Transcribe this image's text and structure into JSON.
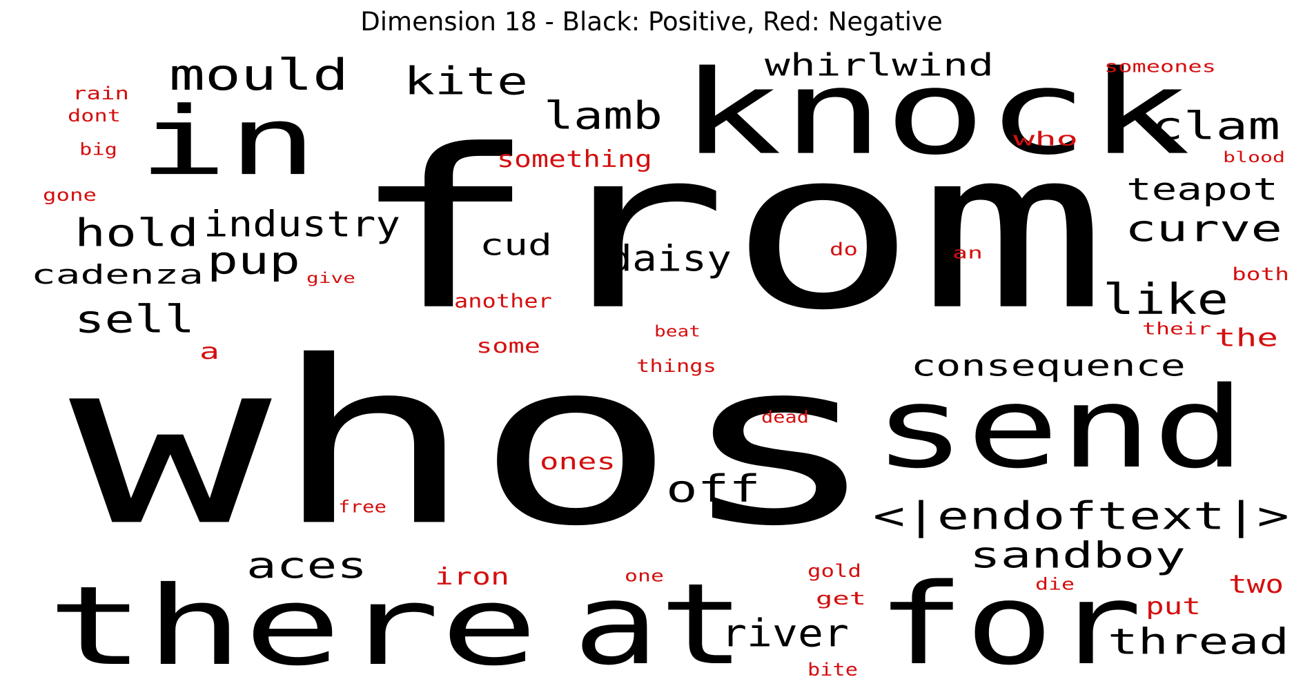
{
  "title": "Dimension 18 - Black: Positive, Red: Negative",
  "colors": {
    "positive": "#000000",
    "negative": "#d40f0f"
  },
  "legend": {
    "positive": "Black",
    "negative": "Red"
  },
  "words": [
    {
      "text": "whos",
      "polarity": "positive"
    },
    {
      "text": "from",
      "polarity": "positive"
    },
    {
      "text": "knock",
      "polarity": "positive"
    },
    {
      "text": "in",
      "polarity": "positive"
    },
    {
      "text": "there",
      "polarity": "positive"
    },
    {
      "text": "for",
      "polarity": "positive"
    },
    {
      "text": "at",
      "polarity": "positive"
    },
    {
      "text": "send",
      "polarity": "positive"
    },
    {
      "text": "mould",
      "polarity": "positive"
    },
    {
      "text": "kite",
      "polarity": "positive"
    },
    {
      "text": "whirlwind",
      "polarity": "positive"
    },
    {
      "text": "lamb",
      "polarity": "positive"
    },
    {
      "text": "clam",
      "polarity": "positive"
    },
    {
      "text": "teapot",
      "polarity": "positive"
    },
    {
      "text": "curve",
      "polarity": "positive"
    },
    {
      "text": "hold",
      "polarity": "positive"
    },
    {
      "text": "industry",
      "polarity": "positive"
    },
    {
      "text": "pup",
      "polarity": "positive"
    },
    {
      "text": "cadenza",
      "polarity": "positive"
    },
    {
      "text": "cud",
      "polarity": "positive"
    },
    {
      "text": "daisy",
      "polarity": "positive"
    },
    {
      "text": "like",
      "polarity": "positive"
    },
    {
      "text": "sell",
      "polarity": "positive"
    },
    {
      "text": "consequence",
      "polarity": "positive"
    },
    {
      "text": "off",
      "polarity": "positive"
    },
    {
      "text": "<|endoftext|>",
      "polarity": "positive"
    },
    {
      "text": "sandboy",
      "polarity": "positive"
    },
    {
      "text": "aces",
      "polarity": "positive"
    },
    {
      "text": "river",
      "polarity": "positive"
    },
    {
      "text": "thread",
      "polarity": "positive"
    },
    {
      "text": "someones",
      "polarity": "negative"
    },
    {
      "text": "rain",
      "polarity": "negative"
    },
    {
      "text": "dont",
      "polarity": "negative"
    },
    {
      "text": "big",
      "polarity": "negative"
    },
    {
      "text": "gone",
      "polarity": "negative"
    },
    {
      "text": "something",
      "polarity": "negative"
    },
    {
      "text": "who",
      "polarity": "negative"
    },
    {
      "text": "blood",
      "polarity": "negative"
    },
    {
      "text": "do",
      "polarity": "negative"
    },
    {
      "text": "an",
      "polarity": "negative"
    },
    {
      "text": "give",
      "polarity": "negative"
    },
    {
      "text": "both",
      "polarity": "negative"
    },
    {
      "text": "another",
      "polarity": "negative"
    },
    {
      "text": "their",
      "polarity": "negative"
    },
    {
      "text": "the",
      "polarity": "negative"
    },
    {
      "text": "a",
      "polarity": "negative"
    },
    {
      "text": "beat",
      "polarity": "negative"
    },
    {
      "text": "some",
      "polarity": "negative"
    },
    {
      "text": "things",
      "polarity": "negative"
    },
    {
      "text": "dead",
      "polarity": "negative"
    },
    {
      "text": "ones",
      "polarity": "negative"
    },
    {
      "text": "free",
      "polarity": "negative"
    },
    {
      "text": "iron",
      "polarity": "negative"
    },
    {
      "text": "one",
      "polarity": "negative"
    },
    {
      "text": "gold",
      "polarity": "negative"
    },
    {
      "text": "get",
      "polarity": "negative"
    },
    {
      "text": "die",
      "polarity": "negative"
    },
    {
      "text": "two",
      "polarity": "negative"
    },
    {
      "text": "put",
      "polarity": "negative"
    },
    {
      "text": "bite",
      "polarity": "negative"
    }
  ]
}
